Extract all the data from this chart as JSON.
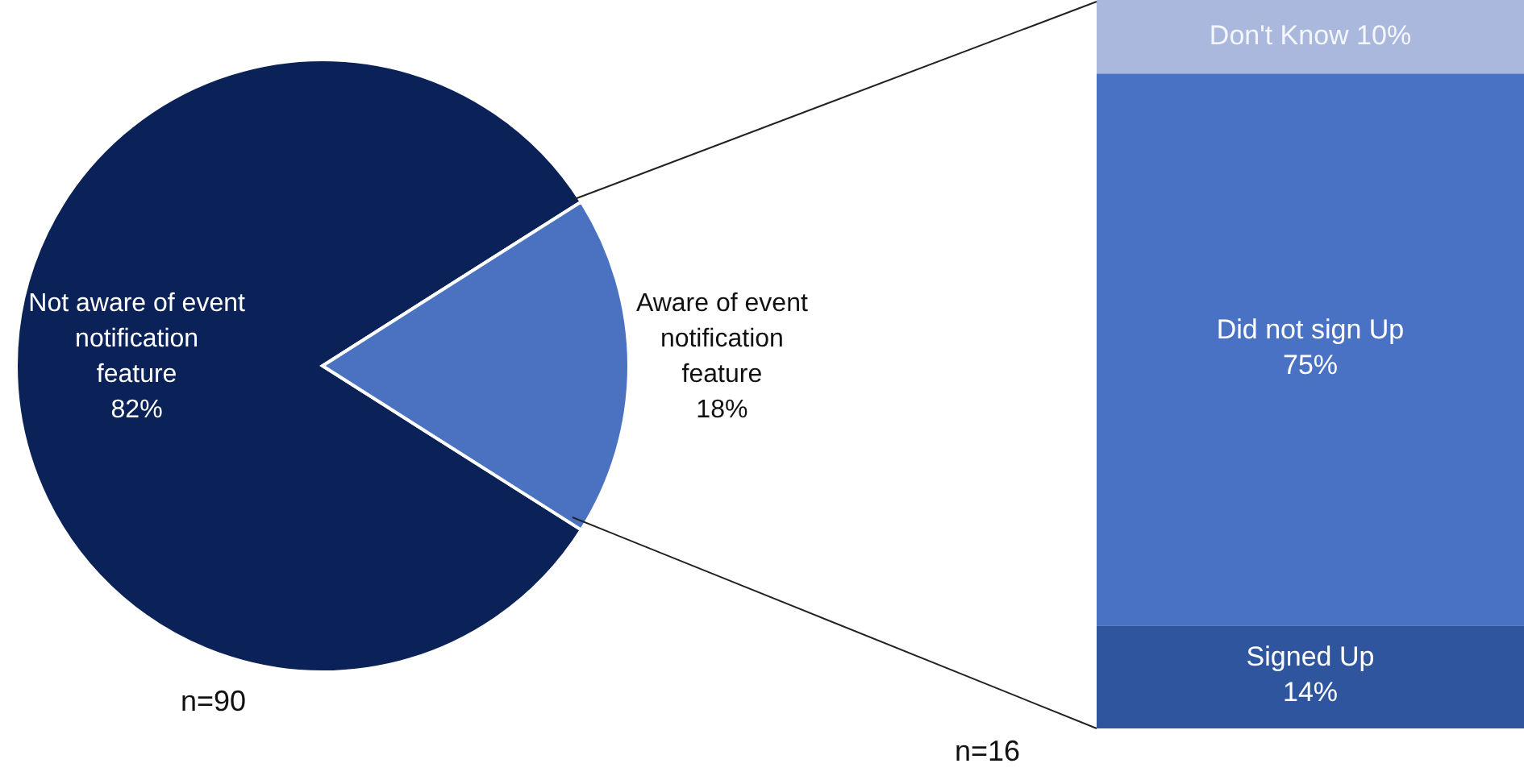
{
  "chart_data": [
    {
      "type": "pie",
      "categories": [
        "Not aware of event notification feature",
        "Aware of event notification feature"
      ],
      "values": [
        82,
        18
      ],
      "colors": [
        "#0b2258",
        "#4a72c0"
      ],
      "value_labels": [
        "82%",
        "18%"
      ],
      "annotations": [
        "n=90"
      ]
    },
    {
      "type": "bar",
      "stacked": true,
      "categories": [
        null
      ],
      "series": [
        {
          "name": "Signed Up",
          "color": "#2f559f",
          "values": [
            14
          ],
          "value_labels": [
            "14%"
          ]
        },
        {
          "name": "Did not sign Up",
          "color": "#4a72c4",
          "values": [
            75
          ],
          "value_labels": [
            "75%"
          ]
        },
        {
          "name": "Don't Know",
          "color": "#a9b8dc",
          "values": [
            10
          ],
          "value_labels": [
            "10%"
          ]
        }
      ],
      "annotations": [
        "n=16"
      ]
    }
  ]
}
